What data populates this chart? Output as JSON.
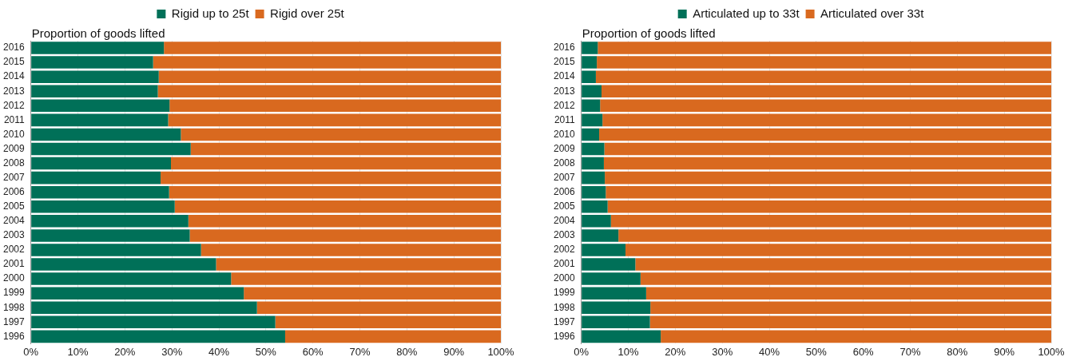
{
  "chart_data": [
    {
      "type": "bar",
      "orientation": "horizontal",
      "stacked": true,
      "ylabel": "Proportion of goods lifted",
      "categories": [
        "2016",
        "2015",
        "2014",
        "2013",
        "2012",
        "2011",
        "2010",
        "2009",
        "2008",
        "2007",
        "2006",
        "2005",
        "2004",
        "2003",
        "2002",
        "2001",
        "2000",
        "1999",
        "1998",
        "1997",
        "1996"
      ],
      "series": [
        {
          "name": "Rigid up to 25t",
          "color": "#007058",
          "values": [
            28.3,
            26.0,
            27.2,
            27.0,
            29.5,
            29.2,
            31.9,
            34.0,
            29.8,
            27.6,
            29.4,
            30.6,
            33.5,
            33.8,
            36.2,
            39.4,
            42.6,
            45.3,
            48.1,
            52.0,
            54.1
          ]
        },
        {
          "name": "Rigid over 25t",
          "color": "#d9691f",
          "values": [
            71.7,
            74.0,
            72.8,
            73.0,
            70.5,
            70.8,
            68.1,
            66.0,
            70.2,
            72.4,
            70.6,
            69.4,
            66.5,
            66.2,
            63.8,
            60.6,
            57.4,
            54.7,
            51.9,
            48.0,
            45.9
          ]
        }
      ],
      "xlim": [
        0,
        100
      ],
      "xticks": [
        {
          "value": 0,
          "label": "0%"
        },
        {
          "value": 10,
          "label": "10%"
        },
        {
          "value": 20,
          "label": "20%"
        },
        {
          "value": 30,
          "label": "30%"
        },
        {
          "value": 40,
          "label": "40%"
        },
        {
          "value": 50,
          "label": "50%"
        },
        {
          "value": 60,
          "label": "60%"
        },
        {
          "value": 70,
          "label": "70%"
        },
        {
          "value": 80,
          "label": "80%"
        },
        {
          "value": 90,
          "label": "90%"
        },
        {
          "value": 100,
          "label": "100%"
        }
      ],
      "grid": "x",
      "legend": "top"
    },
    {
      "type": "bar",
      "orientation": "horizontal",
      "stacked": true,
      "ylabel": "Proportion of goods lifted",
      "categories": [
        "2016",
        "2015",
        "2014",
        "2013",
        "2012",
        "2011",
        "2010",
        "2009",
        "2008",
        "2007",
        "2006",
        "2005",
        "2004",
        "2003",
        "2002",
        "2001",
        "2000",
        "1999",
        "1998",
        "1997",
        "1996"
      ],
      "series": [
        {
          "name": "Articulated up to 33t",
          "color": "#007058",
          "values": [
            3.5,
            3.3,
            3.1,
            4.3,
            4.0,
            4.5,
            3.8,
            4.9,
            4.8,
            5.0,
            5.2,
            5.6,
            6.3,
            7.9,
            9.4,
            11.5,
            12.6,
            13.8,
            14.7,
            14.6,
            16.9
          ]
        },
        {
          "name": "Articulated over 33t",
          "color": "#d9691f",
          "values": [
            96.5,
            96.7,
            96.9,
            95.7,
            96.0,
            95.5,
            96.2,
            95.1,
            95.2,
            95.0,
            94.8,
            94.4,
            93.7,
            92.1,
            90.6,
            88.5,
            87.4,
            86.2,
            85.3,
            85.4,
            83.1
          ]
        }
      ],
      "xlim": [
        0,
        100
      ],
      "xticks": [
        {
          "value": 0,
          "label": "0%"
        },
        {
          "value": 10,
          "label": "10%"
        },
        {
          "value": 20,
          "label": "20%"
        },
        {
          "value": 30,
          "label": "30%"
        },
        {
          "value": 40,
          "label": "40%"
        },
        {
          "value": 50,
          "label": "50%"
        },
        {
          "value": 60,
          "label": "60%"
        },
        {
          "value": 70,
          "label": "70%"
        },
        {
          "value": 80,
          "label": "80%"
        },
        {
          "value": 90,
          "label": "90%"
        },
        {
          "value": 100,
          "label": "100%"
        }
      ],
      "grid": "x",
      "legend": "top"
    }
  ]
}
